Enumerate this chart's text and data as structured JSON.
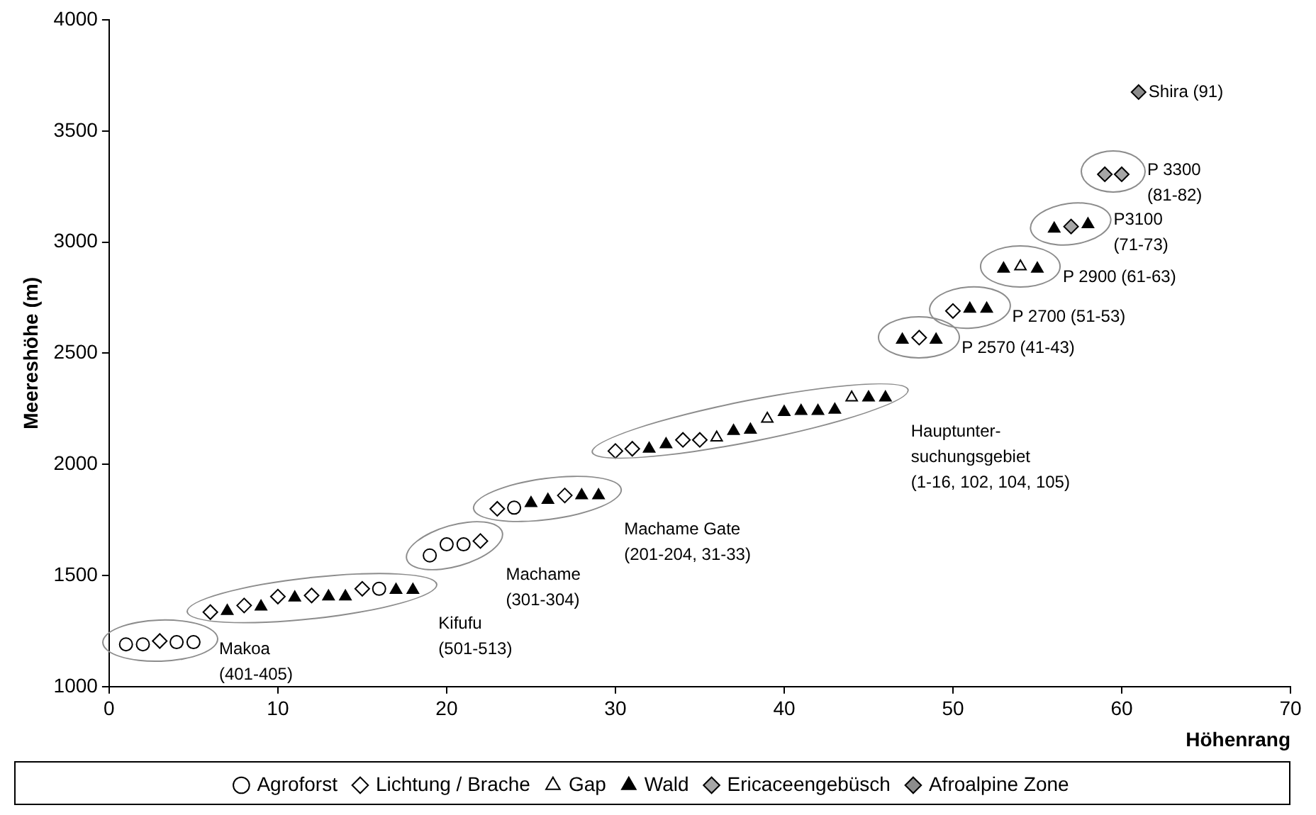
{
  "chart_data": {
    "type": "scatter",
    "xlabel": "Höhenrang",
    "ylabel": "Meereshöhe (m)",
    "xlim": [
      0,
      70
    ],
    "xticks": [
      0,
      10,
      20,
      30,
      40,
      50,
      60,
      70
    ],
    "ylim": [
      1000,
      4000
    ],
    "yticks": [
      1000,
      1500,
      2000,
      2500,
      3000,
      3500,
      4000
    ],
    "grid": false,
    "legend": "bottom",
    "series": [
      {
        "name": "Agroforst",
        "color": "#ffffff",
        "marker": "circle",
        "x": [
          1,
          2,
          4,
          5,
          16,
          19,
          20,
          21,
          24
        ],
        "values": [
          1190,
          1190,
          1200,
          1200,
          1440,
          1590,
          1640,
          1640,
          1805
        ]
      },
      {
        "name": "Lichtung / Brache",
        "color": "#ffffff",
        "marker": "diamond",
        "x": [
          3,
          6,
          8,
          10,
          12,
          15,
          22,
          23,
          27,
          30,
          31,
          34,
          35,
          48,
          50
        ],
        "values": [
          1205,
          1335,
          1365,
          1405,
          1410,
          1440,
          1655,
          1800,
          1860,
          2060,
          2070,
          2110,
          2110,
          2570,
          2690
        ]
      },
      {
        "name": "Gap",
        "color": "#ffffff",
        "marker": "triangle",
        "x": [
          36,
          39,
          44,
          54
        ],
        "values": [
          2120,
          2205,
          2300,
          2890
        ]
      },
      {
        "name": "Wald",
        "color": "#000000",
        "marker": "triangle",
        "x": [
          7,
          9,
          11,
          13,
          14,
          17,
          18,
          25,
          26,
          28,
          29,
          32,
          33,
          37,
          38,
          40,
          41,
          42,
          43,
          45,
          46,
          47,
          49,
          51,
          52,
          53,
          55,
          56,
          58
        ],
        "values": [
          1340,
          1360,
          1400,
          1405,
          1405,
          1435,
          1435,
          1825,
          1840,
          1860,
          1860,
          2070,
          2090,
          2150,
          2155,
          2235,
          2240,
          2240,
          2245,
          2300,
          2300,
          2560,
          2560,
          2700,
          2700,
          2880,
          2880,
          3060,
          3080
        ]
      },
      {
        "name": "Ericaceengebüsch",
        "color": "#a6a6a6",
        "marker": "diamond",
        "x": [
          57,
          59,
          60
        ],
        "values": [
          3070,
          3305,
          3305
        ]
      },
      {
        "name": "Afroalpine Zone",
        "color": "#8c8c8c",
        "marker": "diamond",
        "x": [
          61
        ],
        "values": [
          3675
        ]
      }
    ],
    "annotations": [
      "Makoa\n(401-405)",
      "Kifufu\n(501-513)",
      "Machame\n(301-304)",
      "Machame Gate\n(201-204, 31-33)",
      "Hauptunter-\nsuchungsgebiet\n(1-16, 102, 104, 105)",
      "P 2570 (41-43)",
      "P 2700 (51-53)",
      "P 2900 (61-63)",
      "P3100\n(71-73)",
      "P 3300\n(81-82)",
      "Shira (91)"
    ]
  }
}
